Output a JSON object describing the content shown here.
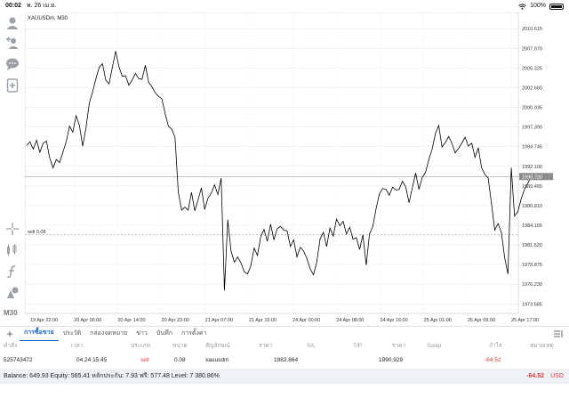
{
  "status_bar": {
    "time": "00:02",
    "date": "พ. 26 เม.ย.",
    "battery": "100%"
  },
  "chart": {
    "title": "XAUUSDm, M30",
    "price_labels": [
      "2010.615",
      "2007.970",
      "2005.325",
      "2002.680",
      "2000.035",
      "1997.390",
      "1994.745",
      "1992.100",
      "1989.455",
      "1986.810",
      "1984.165",
      "1981.520",
      "1978.875",
      "1976.230",
      "1973.585"
    ],
    "current_price": "1990.720",
    "sell_line_label": "sell 0.08",
    "time_labels": [
      "19 Apr 22:00",
      "20 Apr 06:00",
      "20 Apr 14:00",
      "20 Apr 23:00",
      "21 Apr 07:00",
      "21 Apr 15:00",
      "24 Apr 00:00",
      "24 Apr 08:00",
      "24 Apr 16:00",
      "25 Apr 01:00",
      "25 Apr 09:00",
      "25 Apr 17:00"
    ],
    "timeframe_label": "M30"
  },
  "chart_data": {
    "type": "line",
    "title": "XAUUSDm, M30",
    "xlabel": "",
    "ylabel": "",
    "ylim": [
      1972.3,
      2012.8
    ],
    "x_ticks": [
      "19 Apr 22:00",
      "20 Apr 06:00",
      "20 Apr 14:00",
      "20 Apr 23:00",
      "21 Apr 07:00",
      "21 Apr 15:00",
      "24 Apr 00:00",
      "24 Apr 08:00",
      "24 Apr 16:00",
      "25 Apr 01:00",
      "25 Apr 09:00",
      "25 Apr 17:00"
    ],
    "y_ticks": [
      2010.615,
      2007.97,
      2005.325,
      2002.68,
      2000.035,
      1997.39,
      1994.745,
      1992.1,
      1989.455,
      1986.81,
      1984.165,
      1981.52,
      1978.875,
      1976.23,
      1973.585
    ],
    "reference_lines": [
      {
        "label": "current",
        "value": 1990.72
      },
      {
        "label": "sell 0.08",
        "value": 1982.864
      }
    ],
    "series": [
      {
        "values": [
          1994.9,
          1995.4,
          1994.4,
          1995.6,
          1994.0,
          1995.2,
          1995.5,
          1993.2,
          1991.9,
          1993.0,
          1992.6,
          1994.0,
          1995.4,
          1997.5,
          1996.7,
          1998.9,
          1997.6,
          1994.8,
          1997.3,
          2000.6,
          2002.1,
          2003.9,
          2005.4,
          2005.9,
          2003.7,
          2003.2,
          2005.4,
          2007.6,
          2005.5,
          2004.2,
          2004.3,
          2003.0,
          2003.7,
          2004.6,
          2003.9,
          2003.8,
          2005.7,
          2003.4,
          2002.8,
          2002.0,
          2001.5,
          2001.2,
          1999.2,
          1997.5,
          1997.1,
          1996.0,
          1988.6,
          1986.2,
          1986.6,
          1986.2,
          1988.6,
          1986.1,
          1987.6,
          1989.2,
          1986.3,
          1987.8,
          1988.5,
          1989.6,
          1988.3,
          1990.5,
          1975.4,
          1984.9,
          1980.7,
          1979.2,
          1979.9,
          1979.1,
          1977.9,
          1977.6,
          1978.7,
          1981.1,
          1980.1,
          1982.6,
          1983.6,
          1982.0,
          1984.3,
          1982.2,
          1983.7,
          1984.0,
          1983.5,
          1983.4,
          1981.3,
          1982.2,
          1979.9,
          1981.2,
          1980.7,
          1979.7,
          1978.3,
          1977.5,
          1979.2,
          1982.3,
          1983.2,
          1981.3,
          1983.8,
          1982.7,
          1985.0,
          1984.1,
          1984.7,
          1983.0,
          1983.9,
          1982.3,
          1982.5,
          1980.9,
          1982.9,
          1978.8,
          1983.0,
          1984.0,
          1986.4,
          1988.4,
          1989.1,
          1989.0,
          1988.2,
          1989.3,
          1988.9,
          1989.0,
          1990.1,
          1989.3,
          1987.2,
          1989.2,
          1991.2,
          1989.0,
          1990.6,
          1991.3,
          1993.0,
          1994.4,
          1996.5,
          1997.6,
          1994.7,
          1995.3,
          1996.1,
          1995.2,
          1993.9,
          1994.5,
          1995.2,
          1996.0,
          1994.8,
          1995.2,
          1993.3,
          1994.6,
          1991.9,
          1991.0,
          1990.5,
          1987.1,
          1983.5,
          1984.4,
          1983.2,
          1979.8,
          1977.6,
          1991.9,
          1985.4,
          1986.0,
          1987.7,
          1989.0,
          1989.8,
          1990.6,
          1990.7
        ]
      }
    ]
  },
  "toolbar": {
    "items": [
      "person-icon",
      "person-add-icon",
      "chat-icon",
      "add-document-icon",
      "crosshair-icon",
      "indicators-icon",
      "function-icon",
      "objects-icon"
    ],
    "timeframe": "M30"
  },
  "tabs": {
    "items": [
      {
        "label": "การซื้อขาย",
        "active": true
      },
      {
        "label": "ประวัติ",
        "active": false
      },
      {
        "label": "กล่องจดหมาย",
        "active": false
      },
      {
        "label": "ข่าว",
        "active": false
      },
      {
        "label": "บันทึก",
        "active": false
      },
      {
        "label": "การตั้งค่า",
        "active": false
      }
    ]
  },
  "table": {
    "headers": [
      "คำสั่ง",
      "เวลา",
      "ประเภท",
      "ขนาด",
      "สัญลักษณ์",
      "ราคา",
      "S/L",
      "T/P",
      "ราคา",
      "Swap",
      "กำไร",
      "หมายเหตุ"
    ],
    "row": {
      "order": "525743472",
      "time": "04.24 15:45",
      "type": "sell",
      "size": "0.08",
      "symbol": "xauusdm",
      "price_open": "1982.864",
      "sl": "",
      "tp": "",
      "price_current": "1990.929",
      "swap": "",
      "profit": "-64.52",
      "comment": ""
    }
  },
  "account": {
    "summary": "Balance: 649.93 Equity: 585.41 หลักประกัน: 7.93 ฟรี: 577.48 Level: 7 380.86%",
    "profit": "-64.52",
    "currency": "USD"
  },
  "colors": {
    "accent": "#1a66c7",
    "loss": "#d53b3b",
    "line": "#000000",
    "grid": "#e6e6e6"
  }
}
